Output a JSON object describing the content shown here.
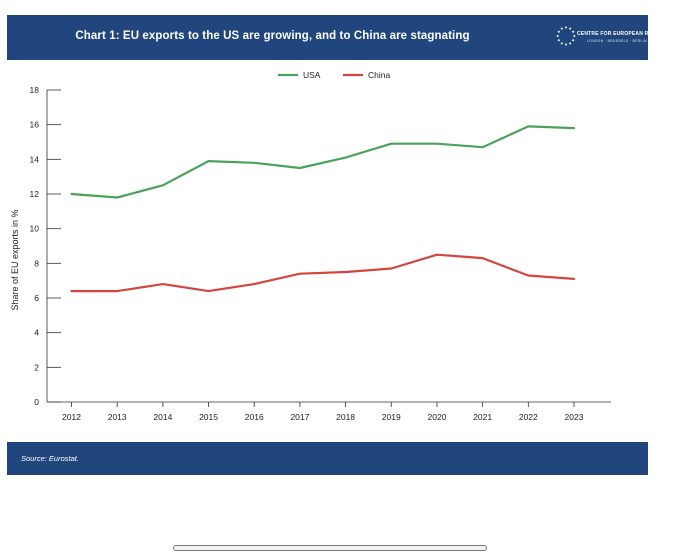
{
  "header": {
    "title": "Chart 1: EU exports to the US are growing, and to China are stagnating",
    "logo_text": "CENTRE FOR EUROPEAN REFORM",
    "logo_subtext": "LONDON · BRUSSELS · BERLIN"
  },
  "footer": {
    "source": "Source: Eurostat."
  },
  "colors": {
    "header_bg": "#21467e",
    "usa": "#4aa35a",
    "china": "#d4453e",
    "axis": "#333333"
  },
  "chart_data": {
    "type": "line",
    "title": "Chart 1: EU exports to the US are growing, and to China are stagnating",
    "xlabel": "",
    "ylabel": "Share of EU exports in %",
    "ylim": [
      0,
      18
    ],
    "yticks": [
      0,
      2,
      4,
      6,
      8,
      10,
      12,
      14,
      16,
      18
    ],
    "x": [
      2012,
      2013,
      2014,
      2015,
      2016,
      2017,
      2018,
      2019,
      2020,
      2021,
      2022,
      2023
    ],
    "legend_position": "top-center",
    "series": [
      {
        "name": "USA",
        "color": "#4aa35a",
        "values": [
          12.0,
          11.8,
          12.5,
          13.9,
          13.8,
          13.5,
          14.1,
          14.9,
          14.9,
          14.7,
          15.9,
          15.8
        ]
      },
      {
        "name": "China",
        "color": "#d4453e",
        "values": [
          6.4,
          6.4,
          6.8,
          6.4,
          6.8,
          7.4,
          7.5,
          7.7,
          8.5,
          8.3,
          7.3,
          7.1
        ]
      }
    ]
  }
}
